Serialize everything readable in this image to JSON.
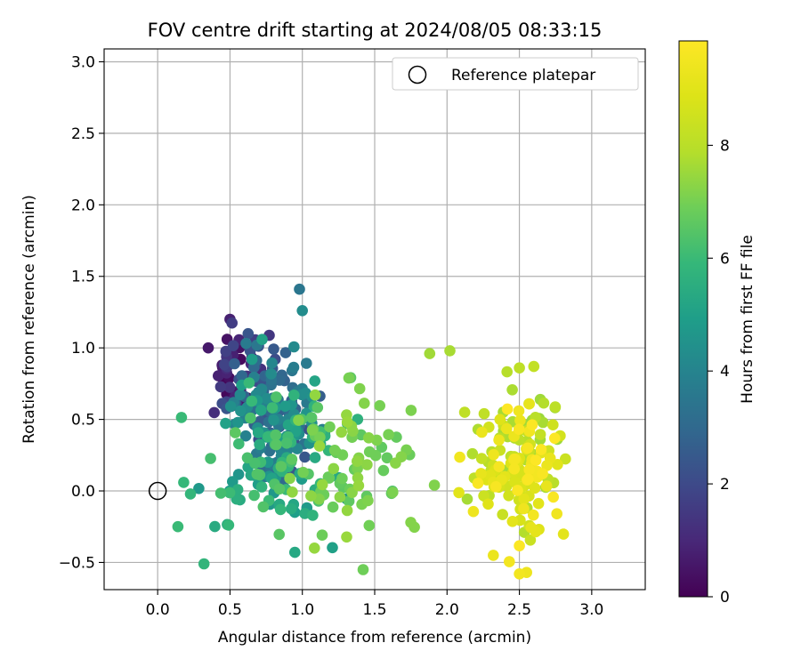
{
  "chart_data": {
    "type": "scatter",
    "title": "FOV centre drift starting at 2024/08/05 08:33:15",
    "xlabel": "Angular distance from reference (arcmin)",
    "ylabel": "Rotation from reference (arcmin)",
    "xlim": [
      -0.37,
      3.37
    ],
    "ylim": [
      -0.69,
      3.09
    ],
    "x_ticks": [
      "0.0",
      "0.5",
      "1.0",
      "1.5",
      "2.0",
      "2.5",
      "3.0"
    ],
    "y_ticks": [
      "−0.5",
      "0.0",
      "0.5",
      "1.0",
      "1.5",
      "2.0",
      "2.5",
      "3.0"
    ],
    "grid": true,
    "legend": {
      "location": "upper right",
      "entries": [
        "Reference platepar"
      ]
    },
    "reference_point": {
      "x": 0.0,
      "y": 0.0,
      "marker": "open-circle"
    },
    "colorbar": {
      "label": "Hours from first FF file",
      "range": [
        0,
        9.85
      ],
      "ticks": [
        "0",
        "2",
        "4",
        "6",
        "8"
      ],
      "colormap": "viridis"
    },
    "clusters": [
      {
        "cx": 0.55,
        "cy": 0.82,
        "sx": 0.11,
        "sy": 0.19,
        "h0": 0.1,
        "h1": 1.9,
        "n": 48
      },
      {
        "cx": 0.82,
        "cy": 0.55,
        "sx": 0.18,
        "sy": 0.26,
        "h0": 2.0,
        "h1": 4.6,
        "n": 150
      },
      {
        "cx": 0.82,
        "cy": 0.22,
        "sx": 0.3,
        "sy": 0.3,
        "h0": 4.6,
        "h1": 6.6,
        "n": 115
      },
      {
        "cx": 1.35,
        "cy": 0.2,
        "sx": 0.26,
        "sy": 0.3,
        "h0": 6.6,
        "h1": 7.5,
        "n": 75
      },
      {
        "cx": 2.5,
        "cy": 0.3,
        "sx": 0.2,
        "sy": 0.3,
        "h0": 7.5,
        "h1": 8.4,
        "n": 60
      },
      {
        "cx": 2.45,
        "cy": 0.15,
        "sx": 0.18,
        "sy": 0.28,
        "h0": 8.4,
        "h1": 9.85,
        "n": 95
      }
    ],
    "highlight_points": [
      {
        "x": 0.98,
        "y": 1.41,
        "hours": 3.5
      },
      {
        "x": 1.0,
        "y": 1.26,
        "hours": 4.3
      },
      {
        "x": 0.35,
        "y": 1.0,
        "hours": 0.6
      },
      {
        "x": 0.5,
        "y": 1.2,
        "hours": 0.8
      },
      {
        "x": 1.88,
        "y": 0.96,
        "hours": 7.6
      },
      {
        "x": 2.02,
        "y": 0.98,
        "hours": 7.7
      },
      {
        "x": 2.6,
        "y": 0.87,
        "hours": 8.2
      },
      {
        "x": 2.5,
        "y": 0.86,
        "hours": 8.1
      },
      {
        "x": 0.32,
        "y": -0.51,
        "hours": 5.8
      },
      {
        "x": 0.14,
        "y": -0.25,
        "hours": 6.0
      },
      {
        "x": 0.18,
        "y": 0.06,
        "hours": 5.9
      },
      {
        "x": 1.42,
        "y": -0.55,
        "hours": 6.9
      },
      {
        "x": 1.75,
        "y": -0.22,
        "hours": 7.2
      },
      {
        "x": 2.5,
        "y": -0.58,
        "hours": 9.5
      },
      {
        "x": 2.55,
        "y": -0.57,
        "hours": 9.4
      },
      {
        "x": 2.65,
        "y": 0.29,
        "hours": 9.8
      },
      {
        "x": 2.66,
        "y": 0.12,
        "hours": 9.7
      },
      {
        "x": 2.32,
        "y": -0.45,
        "hours": 9.3
      }
    ]
  }
}
